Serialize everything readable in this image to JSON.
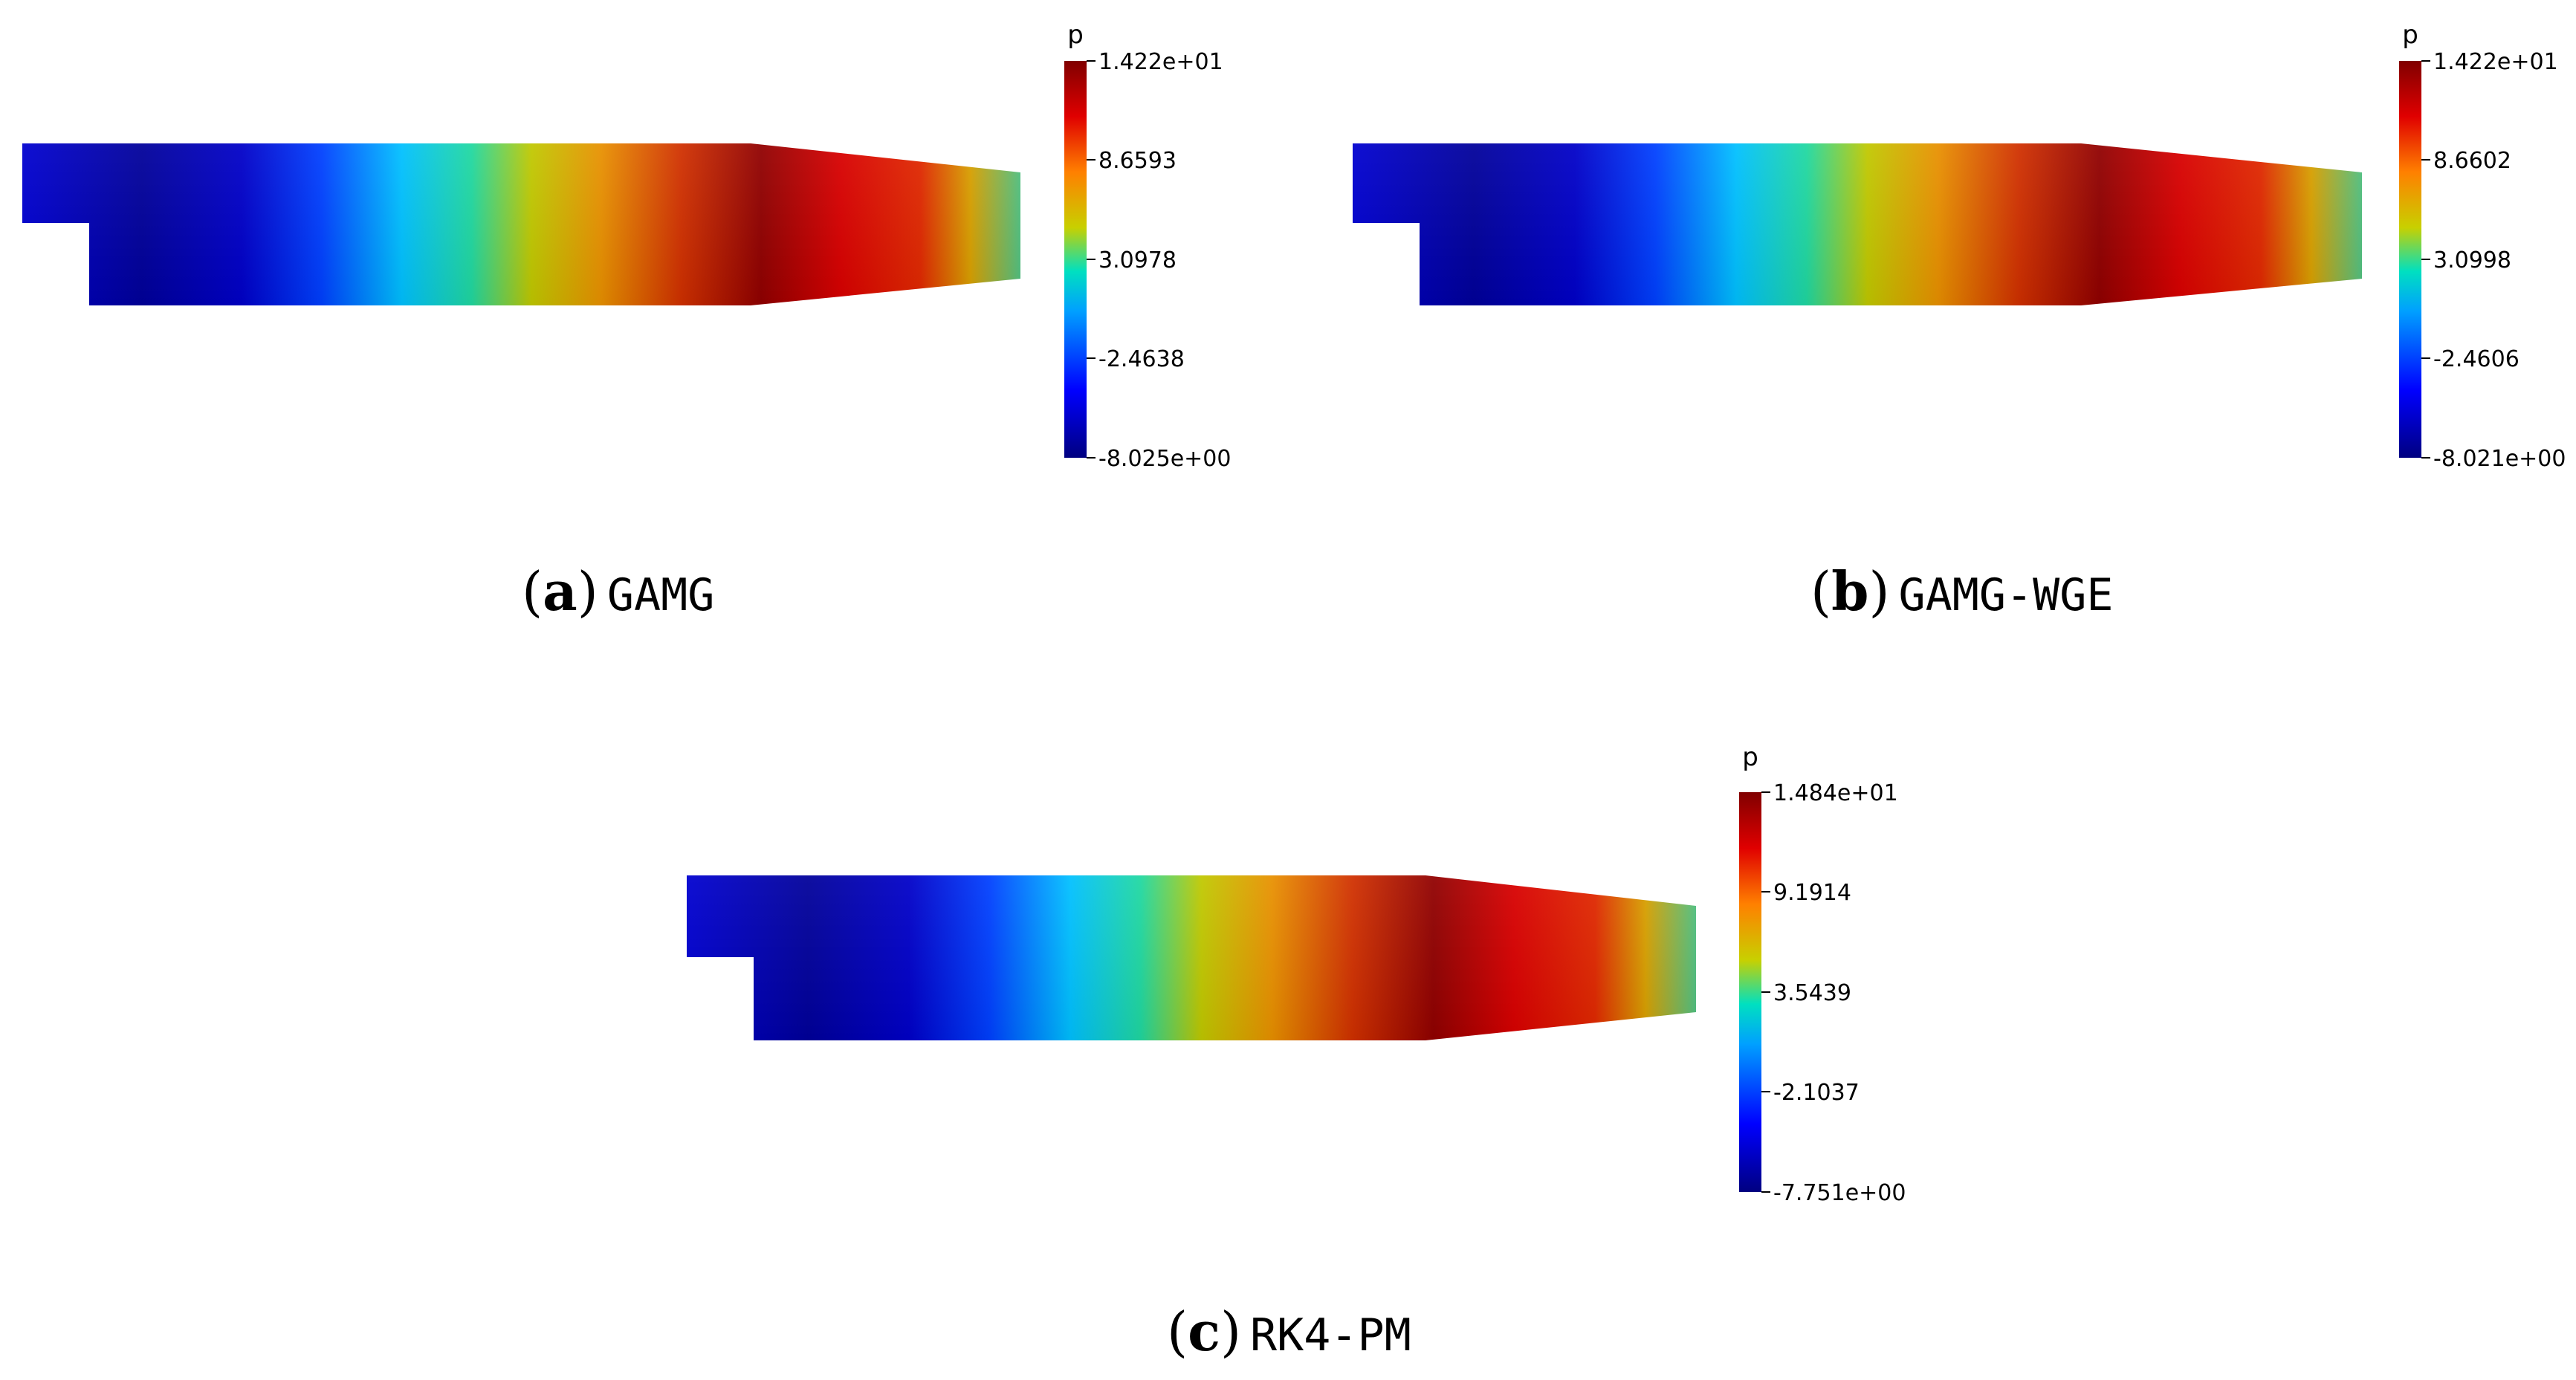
{
  "figure": {
    "panels": [
      {
        "id": "a",
        "letter": "a",
        "method": "GAMG",
        "colorbar": {
          "title": "p",
          "labels": [
            "1.422e+01",
            "8.6593",
            "3.0978",
            "-2.4638",
            "-8.025e+00"
          ],
          "max": 14.22,
          "min": -8.025
        }
      },
      {
        "id": "b",
        "letter": "b",
        "method": "GAMG-WGE",
        "colorbar": {
          "title": "p",
          "labels": [
            "1.422e+01",
            "8.6602",
            "3.0998",
            "-2.4606",
            "-8.021e+00"
          ],
          "max": 14.22,
          "min": -8.021
        }
      },
      {
        "id": "c",
        "letter": "c",
        "method": "RK4-PM",
        "colorbar": {
          "title": "p",
          "labels": [
            "1.484e+01",
            "9.1914",
            "3.5439",
            "-2.1037",
            "-7.751e+00"
          ],
          "max": 14.84,
          "min": -7.751
        }
      }
    ],
    "colormap": [
      "#000080",
      "#0000ff",
      "#00c8ff",
      "#c8c800",
      "#ff7f00",
      "#d80000",
      "#800000"
    ]
  }
}
